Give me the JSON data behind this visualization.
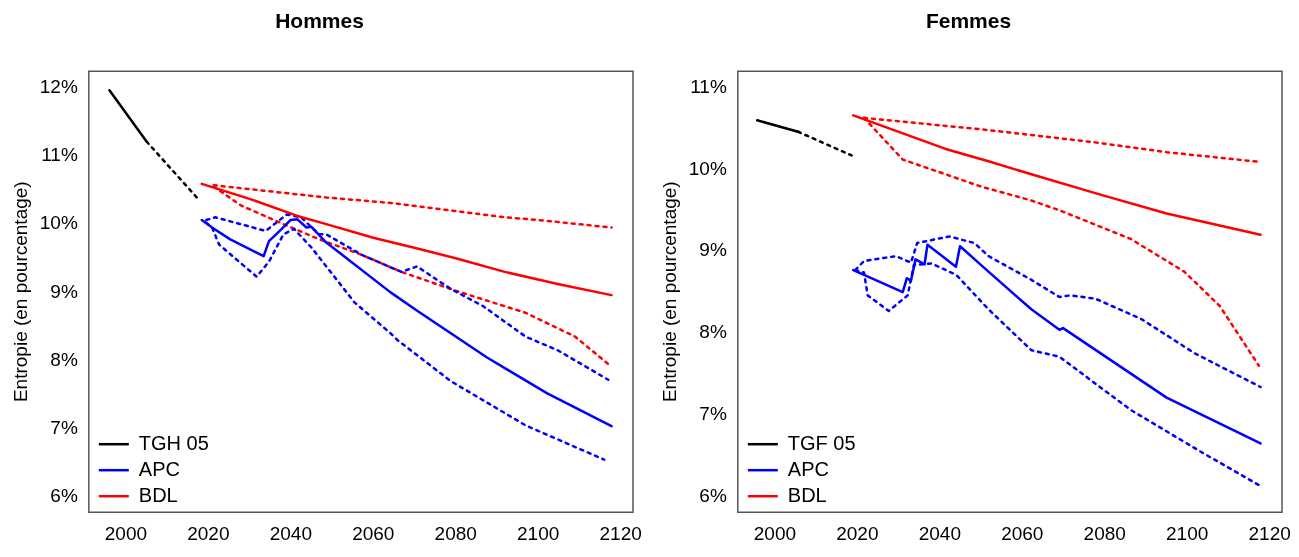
{
  "chart_data": [
    {
      "type": "line",
      "title": "Hommes",
      "ylabel": "Entropie (en pourcentage)",
      "legend": "bottom left",
      "grid": false,
      "xlim": [
        1991,
        2123
      ],
      "xticks": [
        2000,
        2020,
        2040,
        2060,
        2080,
        2100,
        2120
      ],
      "ylim": [
        5.78,
        12.24
      ],
      "yticks": [
        {
          "value": 6,
          "label": "6%"
        },
        {
          "value": 7,
          "label": "7%"
        },
        {
          "value": 8,
          "label": "8%"
        },
        {
          "value": 9,
          "label": "9%"
        },
        {
          "value": 10,
          "label": "10%"
        },
        {
          "value": 11,
          "label": "11%"
        },
        {
          "value": 12,
          "label": "12%"
        }
      ],
      "series": [
        {
          "name": "TGH 05",
          "color": "#000000",
          "line_style": "solid",
          "x": [
            1996,
            2005
          ],
          "values": [
            11.96,
            11.21
          ]
        },
        {
          "name": "APC",
          "color": "#0000ff",
          "line_style": "solid",
          "x": [
            2018.4,
            2020.9,
            2025.2,
            2033.4,
            2034.7,
            2037.3,
            2039.9,
            2041.6,
            2043.8,
            2045,
            2048.6,
            2052.9,
            2064.2,
            2070.2,
            2087.5,
            2102.2,
            2117.8
          ],
          "values": [
            10.06,
            9.95,
            9.78,
            9.53,
            9.75,
            9.9,
            10.06,
            10.07,
            9.95,
            9.96,
            9.73,
            9.53,
            9.0,
            8.75,
            8.05,
            7.52,
            7.04
          ]
        },
        {
          "name": "BDL",
          "color": "#ff0000",
          "line_style": "solid",
          "x": [
            2018.4,
            2030,
            2041.6,
            2048.6,
            2060,
            2070.2,
            2080,
            2091.9,
            2105,
            2117.8
          ],
          "values": [
            10.59,
            10.37,
            10.12,
            10.0,
            9.8,
            9.65,
            9.5,
            9.3,
            9.12,
            8.96
          ]
        },
        {
          "color": "#000000",
          "line_style": "dotted",
          "x": [
            2005,
            2017.8
          ],
          "values": [
            11.21,
            10.35
          ]
        },
        {
          "color": "#0000ff",
          "line_style": "dotted",
          "x": [
            2019.5,
            2021.7,
            2033.9,
            2039,
            2042.5,
            2046.8,
            2048.6,
            2057.2,
            2066.8,
            2070.6,
            2078.8,
            2086.6,
            2097,
            2104.8,
            2117
          ],
          "values": [
            10.06,
            10.1,
            9.9,
            10.14,
            10.1,
            9.85,
            9.85,
            9.55,
            9.3,
            9.38,
            9.05,
            8.8,
            8.35,
            8.15,
            7.72
          ]
        },
        {
          "color": "#0000ff",
          "line_style": "dotted",
          "x": [
            2019.5,
            2020.9,
            2022.6,
            2031.7,
            2034.7,
            2038.2,
            2040.8,
            2045.1,
            2055.5,
            2064.2,
            2065.9,
            2078.8,
            2097,
            2116
          ],
          "values": [
            10.02,
            9.95,
            9.7,
            9.23,
            9.45,
            9.85,
            9.93,
            9.65,
            8.85,
            8.4,
            8.3,
            7.7,
            7.05,
            6.55
          ]
        },
        {
          "color": "#ff0000",
          "line_style": "dotted",
          "x": [
            2021.3,
            2048.6,
            2064.2,
            2080,
            2091.9,
            2100,
            2117.8
          ],
          "values": [
            10.57,
            10.39,
            10.31,
            10.19,
            10.1,
            10.06,
            9.95
          ]
        },
        {
          "color": "#ff0000",
          "line_style": "dotted",
          "x": [
            2021.3,
            2028,
            2038.2,
            2046.8,
            2057.2,
            2066.8,
            2079.7,
            2097,
            2109,
            2117
          ],
          "values": [
            10.55,
            10.27,
            10.0,
            9.78,
            9.55,
            9.3,
            9.03,
            8.7,
            8.35,
            7.95
          ]
        }
      ]
    },
    {
      "type": "line",
      "title": "Femmes",
      "ylabel": "Entropie (en pourcentage)",
      "legend": "bottom left",
      "grid": false,
      "xlim": [
        1991,
        2123
      ],
      "xticks": [
        2000,
        2020,
        2040,
        2060,
        2080,
        2100,
        2120
      ],
      "ylim": [
        5.81,
        11.2
      ],
      "yticks": [
        {
          "value": 6,
          "label": "6%"
        },
        {
          "value": 7,
          "label": "7%"
        },
        {
          "value": 8,
          "label": "8%"
        },
        {
          "value": 9,
          "label": "9%"
        },
        {
          "value": 10,
          "label": "10%"
        },
        {
          "value": 11,
          "label": "11%"
        }
      ],
      "series": [
        {
          "name": "TGF 05",
          "color": "#000000",
          "line_style": "solid",
          "x": [
            1995.7,
            2005.6
          ],
          "values": [
            10.6,
            10.46
          ]
        },
        {
          "name": "APC",
          "color": "#0000ff",
          "line_style": "solid",
          "x": [
            2019,
            2021.2,
            2031,
            2032,
            2033,
            2034.1,
            2036.3,
            2037,
            2043.9,
            2044.9,
            2051.8,
            2062.2,
            2069,
            2069.9,
            2095,
            2117.8
          ],
          "values": [
            8.77,
            8.72,
            8.5,
            8.67,
            8.64,
            8.9,
            8.84,
            9.08,
            8.81,
            9.06,
            8.75,
            8.29,
            8.04,
            8.06,
            7.21,
            6.65
          ]
        },
        {
          "name": "BDL",
          "color": "#ff0000",
          "line_style": "solid",
          "x": [
            2019,
            2041.4,
            2051.8,
            2062.2,
            2077.7,
            2095,
            2117.8
          ],
          "values": [
            10.66,
            10.25,
            10.1,
            9.94,
            9.71,
            9.46,
            9.2
          ]
        },
        {
          "color": "#000000",
          "line_style": "dotted",
          "x": [
            2005.6,
            2018.6
          ],
          "values": [
            10.46,
            10.17
          ]
        },
        {
          "color": "#0000ff",
          "line_style": "dotted",
          "x": [
            2019.5,
            2021.6,
            2029.4,
            2033,
            2034.5,
            2042.3,
            2048.4,
            2051.8,
            2062.2,
            2069,
            2071.6,
            2077.7,
            2088.9,
            2101.9,
            2117.8
          ],
          "values": [
            8.77,
            8.88,
            8.94,
            8.86,
            9.1,
            9.18,
            9.1,
            8.94,
            8.65,
            8.44,
            8.46,
            8.42,
            8.17,
            7.75,
            7.34
          ]
        },
        {
          "color": "#0000ff",
          "line_style": "dotted",
          "x": [
            2019.5,
            2021.6,
            2022.5,
            2027.6,
            2032.2,
            2033.7,
            2038,
            2044,
            2051.8,
            2062.2,
            2069,
            2086.3,
            2103.6,
            2117.8
          ],
          "values": [
            8.77,
            8.74,
            8.46,
            8.27,
            8.46,
            8.83,
            8.85,
            8.71,
            8.29,
            7.79,
            7.71,
            7.06,
            6.54,
            6.13
          ]
        },
        {
          "color": "#ff0000",
          "line_style": "dotted",
          "x": [
            2021.6,
            2051.8,
            2062.2,
            2077.7,
            2095,
            2117.8
          ],
          "values": [
            10.63,
            10.48,
            10.42,
            10.33,
            10.21,
            10.09
          ]
        },
        {
          "color": "#ff0000",
          "line_style": "dotted",
          "x": [
            2021.6,
            2031,
            2050,
            2062.2,
            2069,
            2086.3,
            2099.3,
            2107.9,
            2117.4
          ],
          "values": [
            10.63,
            10.12,
            9.79,
            9.62,
            9.5,
            9.15,
            8.75,
            8.33,
            7.6
          ]
        }
      ]
    }
  ]
}
